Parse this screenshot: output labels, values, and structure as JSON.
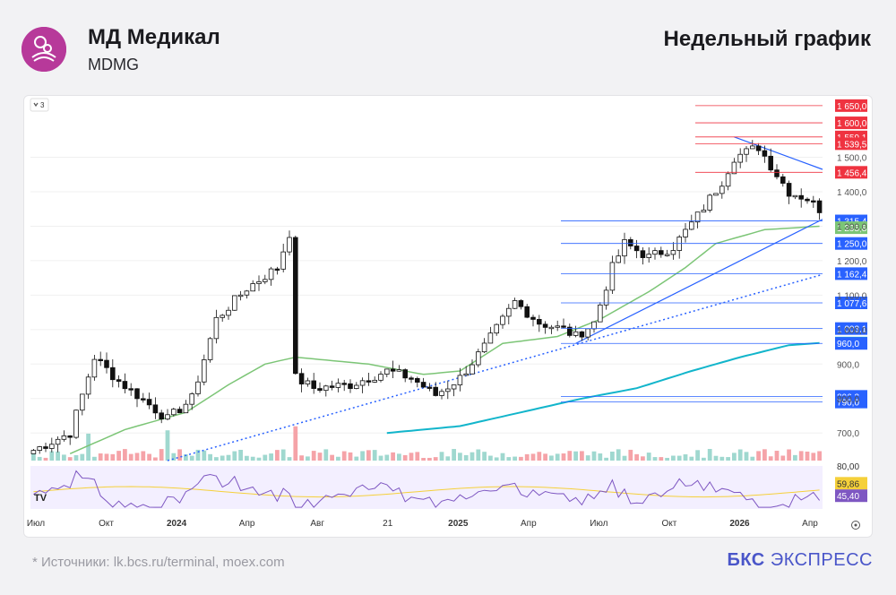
{
  "header": {
    "company": "МД Медикал",
    "ticker": "MDMG",
    "chart_type": "Недельный график"
  },
  "footer": {
    "sources": "*  Источники: lk.bcs.ru/terminal, moex.com",
    "brand_bold": "БКС",
    "brand_rest": "ЭКСПРЕСС"
  },
  "toolbar": {
    "collapse_label": "3"
  },
  "colors": {
    "up": "#26a69a",
    "down": "#111111",
    "ma_fast": "#7cc576",
    "ma_slow": "#12b5cb",
    "trend": "#2962ff",
    "resistance": "#ef3340",
    "support": "#2962ff",
    "rsi": "#7e57c2",
    "rsi_ma": "#f5d03a"
  },
  "chart_data": {
    "type": "candlestick",
    "x_tick_labels": [
      "Июл",
      "Окт",
      "2024",
      "Апр",
      "Авг",
      "21",
      "2025",
      "Апр",
      "Июл",
      "Окт",
      "2026",
      "Апр"
    ],
    "y_ticks": [
      700,
      800,
      900,
      1000,
      1100,
      1200,
      1300,
      1400,
      1500
    ],
    "ylim": [
      620,
      1660
    ],
    "price_levels": [
      {
        "value": 1650.0,
        "label": "1 650,0",
        "kind": "resistance"
      },
      {
        "value": 1600.0,
        "label": "1 600,0",
        "kind": "resistance"
      },
      {
        "value": 1559.1,
        "label": "1 559,1",
        "kind": "resistance"
      },
      {
        "value": 1539.5,
        "label": "1 539,5",
        "kind": "resistance"
      },
      {
        "value": 1456.4,
        "label": "1 456,4",
        "kind": "resistance"
      },
      {
        "value": 1315.4,
        "label": "1 315,4",
        "kind": "support"
      },
      {
        "value": 1295.8,
        "label": "1 295,8",
        "kind": "ma"
      },
      {
        "value": 1250.0,
        "label": "1 250,0",
        "kind": "support"
      },
      {
        "value": 1162.4,
        "label": "1 162,4",
        "kind": "support"
      },
      {
        "value": 1077.6,
        "label": "1 077,6",
        "kind": "support"
      },
      {
        "value": 1003.1,
        "label": "1 003,1",
        "kind": "support"
      },
      {
        "value": 961.1,
        "label": "961,1",
        "kind": "ma_slow"
      },
      {
        "value": 960.0,
        "label": "960,0",
        "kind": "support"
      },
      {
        "value": 806.3,
        "label": "806,3",
        "kind": "support"
      },
      {
        "value": 790.0,
        "label": "790,0",
        "kind": "support"
      }
    ],
    "close_anchors": [
      [
        0,
        650
      ],
      [
        6,
        700
      ],
      [
        10,
        920
      ],
      [
        14,
        850
      ],
      [
        17,
        810
      ],
      [
        22,
        740
      ],
      [
        26,
        800
      ],
      [
        30,
        1030
      ],
      [
        35,
        1120
      ],
      [
        40,
        1180
      ],
      [
        42,
        1280
      ],
      [
        43,
        860
      ],
      [
        46,
        830
      ],
      [
        52,
        840
      ],
      [
        58,
        880
      ],
      [
        62,
        860
      ],
      [
        66,
        810
      ],
      [
        70,
        860
      ],
      [
        74,
        950
      ],
      [
        79,
        1080
      ],
      [
        83,
        1020
      ],
      [
        87,
        1000
      ],
      [
        89,
        980
      ],
      [
        92,
        1020
      ],
      [
        95,
        1180
      ],
      [
        97,
        1250
      ],
      [
        101,
        1210
      ],
      [
        105,
        1240
      ],
      [
        109,
        1330
      ],
      [
        113,
        1430
      ],
      [
        115,
        1500
      ],
      [
        119,
        1530
      ],
      [
        122,
        1450
      ],
      [
        124,
        1400
      ],
      [
        127,
        1380
      ],
      [
        129,
        1350
      ]
    ],
    "ma_fast_anchors": [
      [
        6,
        640
      ],
      [
        15,
        710
      ],
      [
        25,
        760
      ],
      [
        32,
        840
      ],
      [
        38,
        900
      ],
      [
        43,
        920
      ],
      [
        55,
        900
      ],
      [
        64,
        870
      ],
      [
        70,
        880
      ],
      [
        77,
        960
      ],
      [
        86,
        980
      ],
      [
        93,
        1030
      ],
      [
        101,
        1110
      ],
      [
        107,
        1180
      ],
      [
        112,
        1250
      ],
      [
        120,
        1290
      ],
      [
        129,
        1300
      ]
    ],
    "ma_slow_anchors": [
      [
        58,
        700
      ],
      [
        70,
        720
      ],
      [
        80,
        760
      ],
      [
        90,
        800
      ],
      [
        99,
        830
      ],
      [
        108,
        880
      ],
      [
        116,
        920
      ],
      [
        124,
        955
      ],
      [
        129,
        961
      ]
    ],
    "rsi": {
      "ticks": [
        {
          "value": 80,
          "label": "80,00"
        },
        {
          "value": 59.86,
          "label": "59,86"
        },
        {
          "value": 45.4,
          "label": "45,40"
        }
      ],
      "range": [
        30,
        80
      ]
    }
  }
}
